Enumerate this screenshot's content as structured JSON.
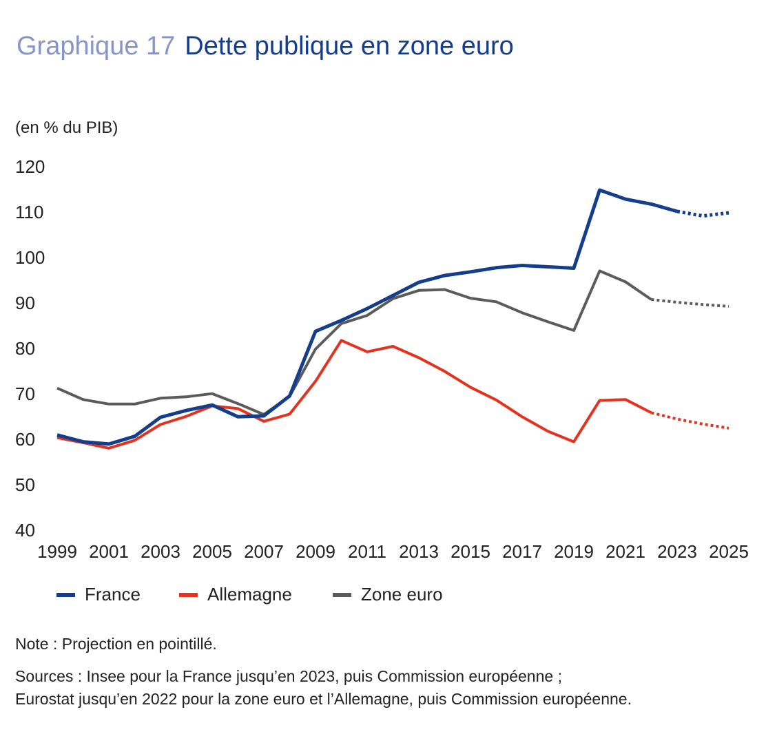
{
  "header": {
    "prefix": "Graphique 17",
    "title": "Dette publique en zone euro"
  },
  "footer": {
    "note": "Note : Projection en pointillé.",
    "sources_line1": "Sources : Insee pour la France jusqu’en 2023, puis Commission européenne ;",
    "sources_line2": "Eurostat jusqu’en 2022 pour la zone euro et l’Allemagne, puis Commission européenne."
  },
  "chart_data": {
    "type": "line",
    "title": "Dette publique en zone euro",
    "unit_label": "(en % du PIB)",
    "xlabel": "",
    "ylabel": "",
    "ylim": [
      40,
      120
    ],
    "yticks": [
      "40",
      "50",
      "60",
      "70",
      "80",
      "90",
      "100",
      "110",
      "120"
    ],
    "xticks": [
      "1999",
      "2001",
      "2003",
      "2005",
      "2007",
      "2009",
      "2011",
      "2013",
      "2015",
      "2017",
      "2019",
      "2021",
      "2023",
      "2025"
    ],
    "x": [
      1999,
      2000,
      2001,
      2002,
      2003,
      2004,
      2005,
      2006,
      2007,
      2008,
      2009,
      2010,
      2011,
      2012,
      2013,
      2014,
      2015,
      2016,
      2017,
      2018,
      2019,
      2020,
      2021,
      2022,
      2023,
      2024,
      2025
    ],
    "grid": false,
    "legend_position": "bottom",
    "series": [
      {
        "name": "France",
        "color": "#143d8c",
        "values": [
          60.8,
          59.3,
          58.8,
          60.5,
          64.7,
          66.2,
          67.4,
          64.8,
          65.0,
          69.4,
          83.6,
          86.0,
          88.6,
          91.5,
          94.4,
          95.9,
          96.7,
          97.6,
          98.1,
          97.8,
          97.5,
          114.7,
          112.7,
          111.6,
          110.0,
          109.0,
          109.7
        ],
        "projection_from": 2023
      },
      {
        "name": "Allemagne",
        "color": "#e4321f",
        "values": [
          60.2,
          59.1,
          57.9,
          59.6,
          63.1,
          64.9,
          67.2,
          66.6,
          63.8,
          65.4,
          72.6,
          81.6,
          79.1,
          80.3,
          77.8,
          74.8,
          71.3,
          68.5,
          64.8,
          61.6,
          59.3,
          68.4,
          68.6,
          65.7,
          64.3,
          63.2,
          62.3
        ],
        "projection_from": 2022
      },
      {
        "name": "Zone euro",
        "color": "#5b5b5b",
        "values": [
          71.1,
          68.6,
          67.6,
          67.6,
          68.9,
          69.2,
          69.9,
          67.7,
          65.3,
          69.3,
          79.7,
          85.3,
          87.1,
          90.8,
          92.6,
          92.8,
          90.9,
          90.1,
          87.7,
          85.7,
          83.8,
          96.9,
          94.5,
          90.6,
          90.0,
          89.5,
          89.1
        ],
        "projection_from": 2022
      }
    ]
  }
}
